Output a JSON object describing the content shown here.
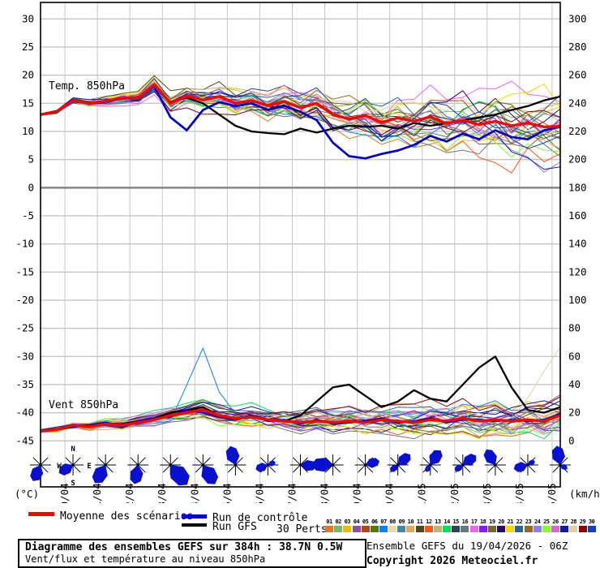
{
  "footer": {
    "title_line1": "Diagramme des ensembles GEFS sur 384h : 38.7N 0.5W",
    "title_line2": "Vent/flux et température au niveau 850hPa",
    "run_info": "Ensemble GEFS du 19/04/2026 - 06Z",
    "copyright": "Copyright 2026 Meteociel.fr"
  },
  "legend": {
    "mean_label": "Moyenne des scénarios",
    "control_label": "Run de contrôle",
    "gfs_label": "Run GFS",
    "perts_label": "30 Perts.",
    "mean_color": "#ff0000",
    "control_color": "#0000dd",
    "gfs_color": "#000000",
    "pert_numbers": [
      "01",
      "02",
      "03",
      "04",
      "05",
      "06",
      "07",
      "08",
      "09",
      "10",
      "11",
      "12",
      "13",
      "14",
      "15",
      "16",
      "17",
      "18",
      "19",
      "20",
      "21",
      "22",
      "23",
      "24",
      "25",
      "26",
      "27",
      "28",
      "29",
      "30"
    ],
    "pert_colors": [
      "#e07828",
      "#78b868",
      "#e8c000",
      "#9050a0",
      "#b04810",
      "#587800",
      "#0880f8",
      "#e8d8a8",
      "#4088a8",
      "#e0a858",
      "#504818",
      "#f85818",
      "#c8b078",
      "#00e060",
      "#284858",
      "#687878",
      "#e868e8",
      "#8818f8",
      "#786830",
      "#28086a",
      "#f0d800",
      "#286888",
      "#986820",
      "#8880e8",
      "#88f830",
      "#d868c8",
      "#1818a8",
      "#e0d0a8",
      "#8a0808",
      "#1040c8"
    ]
  },
  "axes": {
    "left_unit": "(°C)",
    "right_unit": "(km/h)",
    "left_ticks": [
      30,
      25,
      20,
      15,
      10,
      5,
      0,
      -5,
      -10,
      -15,
      -20,
      -25,
      -30,
      -35,
      -40,
      -45
    ],
    "right_ticks": [
      300,
      280,
      260,
      240,
      220,
      200,
      180,
      160,
      140,
      120,
      100,
      80,
      60,
      40,
      20,
      0
    ],
    "date_labels": [
      "20/04",
      "21/04",
      "22/04",
      "23/04",
      "24/04",
      "25/04",
      "26/04",
      "27/04",
      "28/04",
      "29/04",
      "30/04",
      "01/05",
      "02/05",
      "03/05",
      "04/05",
      "05/05"
    ],
    "grid_color": "#c6c6c6",
    "zero_line_color": "#8c8c8c"
  },
  "chart_data": [
    {
      "type": "line",
      "title": "Temp. 850hPa",
      "ylabel": "°C",
      "ylim": [
        -45,
        30
      ],
      "x_hours": [
        0,
        12,
        24,
        36,
        48,
        60,
        72,
        84,
        96,
        108,
        120,
        132,
        144,
        156,
        168,
        180,
        192,
        204,
        216,
        228,
        240,
        252,
        264,
        276,
        288,
        300,
        312,
        324,
        336,
        348,
        360,
        372,
        384
      ],
      "series": [
        {
          "name": "Moyenne des scénarios",
          "color": "#ff0000",
          "width": 3.4,
          "values": [
            13.0,
            13.5,
            15.5,
            15.0,
            15.4,
            15.9,
            16.0,
            18.3,
            15.0,
            16.3,
            15.6,
            16.2,
            15.0,
            15.5,
            14.6,
            15.3,
            14.2,
            15.0,
            13.0,
            12.2,
            12.8,
            11.6,
            12.4,
            11.8,
            12.6,
            11.4,
            12.0,
            11.2,
            11.8,
            11.0,
            11.5,
            10.8,
            10.9
          ]
        },
        {
          "name": "Run de contrôle",
          "color": "#0000cc",
          "width": 2.7,
          "values": [
            13.0,
            13.4,
            15.5,
            15.0,
            15.3,
            15.8,
            16.0,
            18.0,
            12.5,
            10.2,
            13.8,
            15.2,
            14.5,
            15.0,
            13.8,
            14.6,
            13.5,
            12.0,
            8.0,
            5.6,
            5.2,
            6.0,
            6.6,
            7.6,
            9.2,
            8.2,
            9.6,
            8.6,
            10.2,
            9.0,
            8.6,
            10.2,
            10.8
          ]
        },
        {
          "name": "Run GFS",
          "color": "#000000",
          "width": 2.3,
          "values": [
            13.0,
            13.5,
            15.6,
            15.1,
            15.4,
            15.8,
            16.1,
            18.2,
            15.2,
            16.0,
            15.0,
            13.0,
            11.0,
            10.0,
            9.7,
            9.5,
            10.5,
            9.8,
            10.5,
            11.0,
            10.8,
            11.0,
            10.5,
            11.5,
            11.0,
            11.5,
            12.0,
            12.5,
            13.0,
            13.8,
            14.5,
            15.5,
            16.2
          ]
        }
      ],
      "ensemble": {
        "count": 30,
        "spread_start": 0.3,
        "spread_growth": 5.5,
        "spread_pow": 1.1,
        "seed": 41,
        "specials": [
          {
            "member": 17,
            "type": "ramp",
            "start_i": 14,
            "amount": 7.0
          }
        ]
      }
    },
    {
      "type": "line",
      "title": "Vent 850hPa",
      "ylabel": "km/h",
      "ylim": [
        0,
        300
      ],
      "x_hours": [
        0,
        12,
        24,
        36,
        48,
        60,
        72,
        84,
        96,
        108,
        120,
        132,
        144,
        156,
        168,
        180,
        192,
        204,
        216,
        228,
        240,
        252,
        264,
        276,
        288,
        300,
        312,
        324,
        336,
        348,
        360,
        372,
        384
      ],
      "series": [
        {
          "name": "Moyenne des scénarios",
          "color": "#ff0000",
          "width": 3.4,
          "values": [
            7,
            8,
            11,
            10,
            12,
            11,
            13,
            15,
            18,
            20,
            22,
            18,
            16,
            17,
            15,
            14,
            13,
            14,
            13,
            14,
            13,
            15,
            14,
            13,
            15,
            14,
            16,
            14,
            15,
            14,
            15,
            14,
            18
          ]
        },
        {
          "name": "Run de contrôle",
          "color": "#0000cc",
          "width": 2.4,
          "values": [
            7,
            8,
            10,
            11,
            13,
            10,
            14,
            16,
            17,
            22,
            20,
            17,
            15,
            18,
            14,
            15,
            12,
            15,
            12,
            13,
            14,
            16,
            13,
            14,
            16,
            13,
            15,
            15,
            14,
            15,
            14,
            15,
            19
          ]
        },
        {
          "name": "Run GFS",
          "color": "#000000",
          "width": 2.3,
          "values": [
            7,
            8,
            10,
            11,
            12,
            12,
            14,
            16,
            20,
            22,
            24,
            18,
            16,
            18,
            15,
            14,
            18,
            28,
            38,
            40,
            32,
            24,
            28,
            36,
            30,
            28,
            40,
            52,
            60,
            38,
            22,
            20,
            24
          ]
        }
      ],
      "ensemble": {
        "count": 30,
        "spread_start": 2.0,
        "spread_growth": 11.0,
        "spread_pow": 1.0,
        "seed": 97,
        "min": 1.5,
        "specials": [
          {
            "member": 28,
            "type": "end_spike",
            "values": [
              10,
              26,
              46
            ]
          },
          {
            "member": 7,
            "type": "spike",
            "at": 9,
            "values": [
              24,
              46,
              16
            ]
          }
        ]
      }
    }
  ],
  "chart_labels": {
    "temp": "Temp. 850hPa",
    "wind": "Vent 850hPa"
  },
  "compass": {
    "n": "N",
    "e": "E",
    "s": "S",
    "w": "W"
  },
  "wind_roses": {
    "color": "#0a10d0",
    "roses": [
      {
        "d": 205,
        "l": 22
      },
      {
        "d": 240,
        "l": 20,
        "labels": true
      },
      {
        "d": 210,
        "l": 26
      },
      {
        "d": 190,
        "l": 24
      },
      {
        "d": 140,
        "l": 32
      },
      {
        "d": 148,
        "l": 28
      },
      {
        "d": 345,
        "l": 24
      },
      {
        "d": 250,
        "l": 16,
        "d2": 70,
        "l2": 10
      },
      {
        "d": 95,
        "l": 20
      },
      {
        "d": 272,
        "l": 26
      },
      {
        "d": 75,
        "l": 18
      },
      {
        "d": 50,
        "l": 20,
        "d2": 230,
        "l2": 12
      },
      {
        "d": 35,
        "l": 22,
        "d2": 215,
        "l2": 10
      },
      {
        "d": 55,
        "l": 20,
        "d2": 235,
        "l2": 12
      },
      {
        "d": 330,
        "l": 22
      },
      {
        "d": 255,
        "l": 18,
        "d2": 60,
        "l2": 10
      },
      {
        "d": 350,
        "l": 24,
        "d2": 120,
        "l2": 10
      }
    ]
  }
}
